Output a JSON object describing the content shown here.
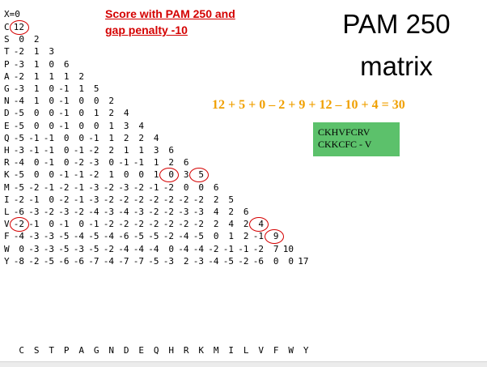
{
  "matrix": {
    "gap_label": "X=0",
    "column_labels": [
      "C",
      "S",
      "T",
      "P",
      "A",
      "G",
      "N",
      "D",
      "E",
      "Q",
      "H",
      "R",
      "K",
      "M",
      "I",
      "L",
      "V",
      "F",
      "W",
      "Y"
    ],
    "rows": [
      {
        "label": "C",
        "values": [
          "12"
        ]
      },
      {
        "label": "S",
        "values": [
          "0",
          "2"
        ]
      },
      {
        "label": "T",
        "values": [
          "-2",
          "1",
          "3"
        ]
      },
      {
        "label": "P",
        "values": [
          "-3",
          "1",
          "0",
          "6"
        ]
      },
      {
        "label": "A",
        "values": [
          "-2",
          "1",
          "1",
          "1",
          "2"
        ]
      },
      {
        "label": "G",
        "values": [
          "-3",
          "1",
          "0",
          "-1",
          "1",
          "5"
        ]
      },
      {
        "label": "N",
        "values": [
          "-4",
          "1",
          "0",
          "-1",
          "0",
          "0",
          "2"
        ]
      },
      {
        "label": "D",
        "values": [
          "-5",
          "0",
          "0",
          "-1",
          "0",
          "1",
          "2",
          "4"
        ]
      },
      {
        "label": "E",
        "values": [
          "-5",
          "0",
          "0",
          "-1",
          "0",
          "0",
          "1",
          "3",
          "4"
        ]
      },
      {
        "label": "Q",
        "values": [
          "-5",
          "-1",
          "-1",
          "0",
          "0",
          "-1",
          "1",
          "2",
          "2",
          "4"
        ]
      },
      {
        "label": "H",
        "values": [
          "-3",
          "-1",
          "-1",
          "0",
          "-1",
          "-2",
          "2",
          "1",
          "1",
          "3",
          "6"
        ]
      },
      {
        "label": "R",
        "values": [
          "-4",
          "0",
          "-1",
          "0",
          "-2",
          "-3",
          "0",
          "-1",
          "-1",
          "1",
          "2",
          "6"
        ]
      },
      {
        "label": "K",
        "values": [
          "-5",
          "0",
          "0",
          "-1",
          "-1",
          "-2",
          "1",
          "0",
          "0",
          "1",
          "0",
          "3",
          "5"
        ]
      },
      {
        "label": "M",
        "values": [
          "-5",
          "-2",
          "-1",
          "-2",
          "-1",
          "-3",
          "-2",
          "-3",
          "-2",
          "-1",
          "-2",
          "0",
          "0",
          "6"
        ]
      },
      {
        "label": "I",
        "values": [
          "-2",
          "-1",
          "0",
          "-2",
          "-1",
          "-3",
          "-2",
          "-2",
          "-2",
          "-2",
          "-2",
          "-2",
          "-2",
          "2",
          "5"
        ]
      },
      {
        "label": "L",
        "values": [
          "-6",
          "-3",
          "-2",
          "-3",
          "-2",
          "-4",
          "-3",
          "-4",
          "-3",
          "-2",
          "-2",
          "-3",
          "-3",
          "4",
          "2",
          "6"
        ]
      },
      {
        "label": "V",
        "values": [
          "-2",
          "-1",
          "0",
          "-1",
          "0",
          "-1",
          "-2",
          "-2",
          "-2",
          "-2",
          "-2",
          "-2",
          "-2",
          "2",
          "4",
          "2",
          "4"
        ]
      },
      {
        "label": "F",
        "values": [
          "-4",
          "-3",
          "-3",
          "-5",
          "-4",
          "-5",
          "-4",
          "-6",
          "-5",
          "-5",
          "-2",
          "-4",
          "-5",
          "0",
          "1",
          "2",
          "-1",
          "9"
        ]
      },
      {
        "label": "W",
        "values": [
          "0",
          "-3",
          "-3",
          "-5",
          "-3",
          "-5",
          "-2",
          "-4",
          "-4",
          "-4",
          "0",
          "-4",
          "-4",
          "-2",
          "-1",
          "-1",
          "-2",
          "7",
          "10"
        ]
      },
      {
        "label": "Y",
        "values": [
          "-8",
          "-2",
          "-5",
          "-6",
          "-6",
          "-7",
          "-4",
          "-7",
          "-7",
          "-5",
          "-3",
          "2",
          "-3",
          "-4",
          "-5",
          "-2",
          "-6",
          "0",
          "0",
          "17"
        ]
      }
    ],
    "highlighted_cells": [
      {
        "row": 0,
        "col": 0
      },
      {
        "row": 12,
        "col": 10
      },
      {
        "row": 12,
        "col": 12
      },
      {
        "row": 16,
        "col": 0
      },
      {
        "row": 16,
        "col": 16
      },
      {
        "row": 17,
        "col": 17
      }
    ]
  },
  "heading": {
    "score_line1": "Score with PAM 250 and",
    "score_line2": "gap penalty -10",
    "title_line1": "PAM 250",
    "title_line2": "matrix"
  },
  "equation": "12 + 5 + 0 – 2 + 9 + 12  – 10 + 4 = 30",
  "alignment": {
    "seq1": "CKHVFCRV",
    "seq2": "CKKCFC - V"
  },
  "colors": {
    "accent_red": "#d40000",
    "equation_orange": "#f0a000",
    "box_green": "#5cc16b"
  }
}
